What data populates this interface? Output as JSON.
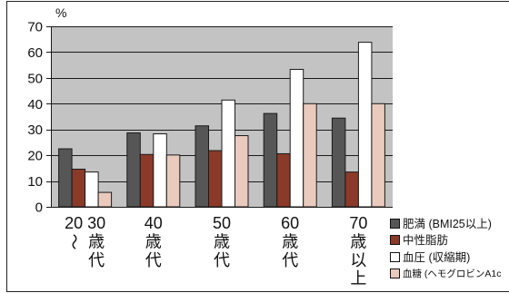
{
  "chart_data": {
    "type": "bar",
    "ylabel": "%",
    "ylim": [
      0,
      70
    ],
    "yticks": [
      0,
      10,
      20,
      30,
      40,
      50,
      60,
      70
    ],
    "grid": true,
    "legend_position": "bottom-right",
    "plot_background": "#c3c3c3",
    "categories": [
      "20〜30歳代",
      "40歳代",
      "50歳代",
      "60歳代",
      "70歳以上"
    ],
    "series": [
      {
        "name": "肥満 (BMI25以上)",
        "color": "#565656",
        "values": [
          22.5,
          28.7,
          31.4,
          36.2,
          34.4
        ]
      },
      {
        "name": "中性脂肪",
        "color": "#8b3a2a",
        "values": [
          14.6,
          20.3,
          21.8,
          20.6,
          13.5
        ]
      },
      {
        "name": "血圧 (収縮期)",
        "color": "#ffffff",
        "values": [
          13.5,
          28.3,
          41.4,
          53.3,
          63.8
        ]
      },
      {
        "name": "血糖 (ヘモグロビンA1c",
        "color": "#e9cabd",
        "values": [
          5.6,
          20.1,
          27.6,
          40.0,
          40.0
        ]
      }
    ]
  }
}
